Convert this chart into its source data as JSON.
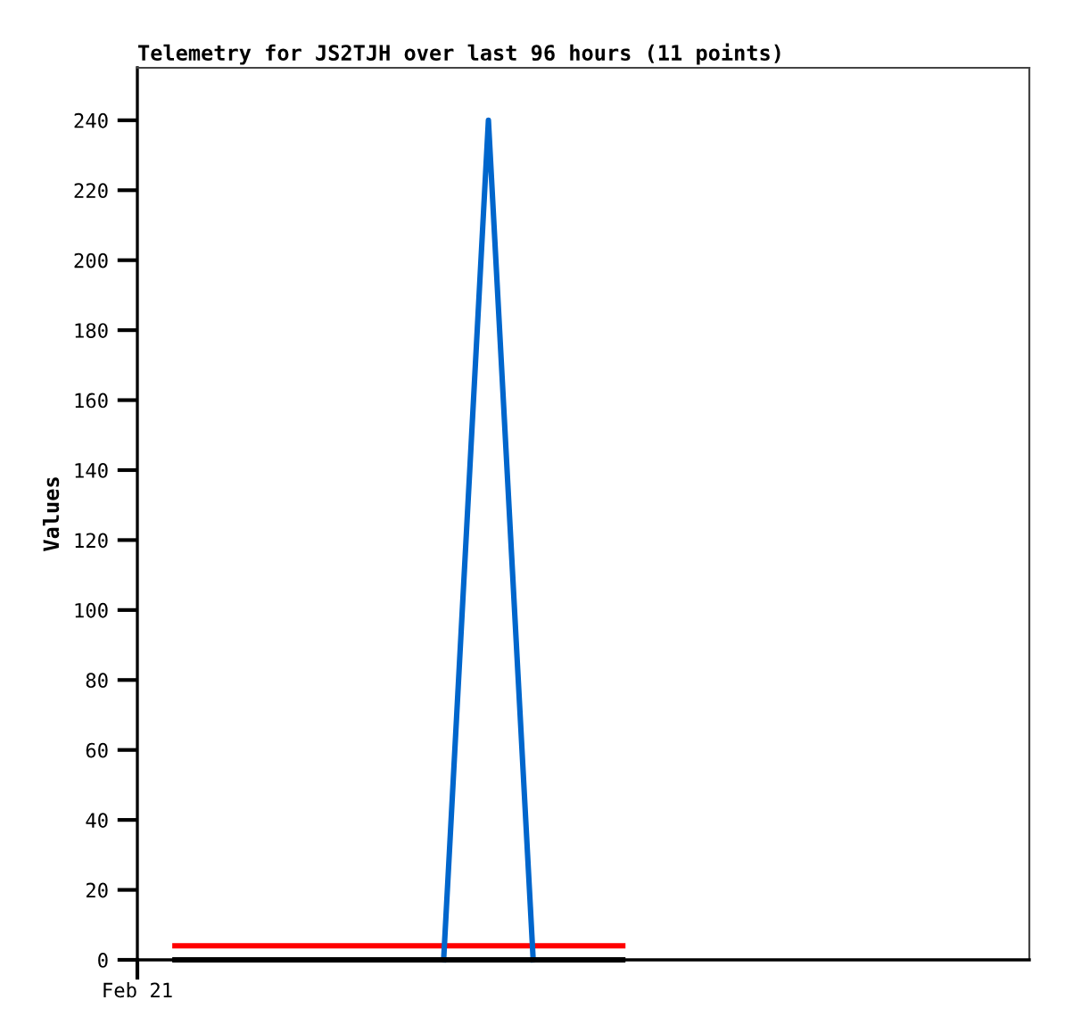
{
  "chart_data": {
    "type": "line",
    "title": "Telemetry for JS2TJH over last 96 hours (11 points)",
    "ylabel": "Values",
    "categories": [
      null,
      null,
      null,
      null,
      null,
      null,
      null,
      null,
      null,
      null,
      null,
      null,
      null,
      null,
      null,
      null,
      null,
      null,
      null,
      null
    ],
    "ylim": [
      0,
      255
    ],
    "yticks": [
      0,
      20,
      40,
      60,
      80,
      100,
      120,
      140,
      160,
      180,
      200,
      220,
      240
    ],
    "series": [
      {
        "color": "#ff0000",
        "values": [
          4,
          4,
          4,
          4,
          4,
          4,
          4,
          4,
          4,
          4,
          4,
          null,
          null,
          null,
          null,
          null,
          null,
          null,
          null,
          null
        ]
      },
      {
        "color": "#0066cc",
        "values": [
          null,
          null,
          null,
          null,
          null,
          null,
          0,
          240,
          0,
          null,
          null,
          null,
          null,
          null,
          null,
          null,
          null,
          null,
          null,
          null
        ]
      },
      {
        "color": "#000000",
        "values": [
          0,
          0,
          0,
          0,
          0,
          0,
          0,
          0,
          0,
          0,
          0,
          null,
          null,
          null,
          null,
          null,
          null,
          null,
          null,
          null
        ]
      }
    ],
    "annotations": [
      "Feb 21"
    ],
    "grid": false,
    "marker": "none",
    "line_style": "solid"
  }
}
